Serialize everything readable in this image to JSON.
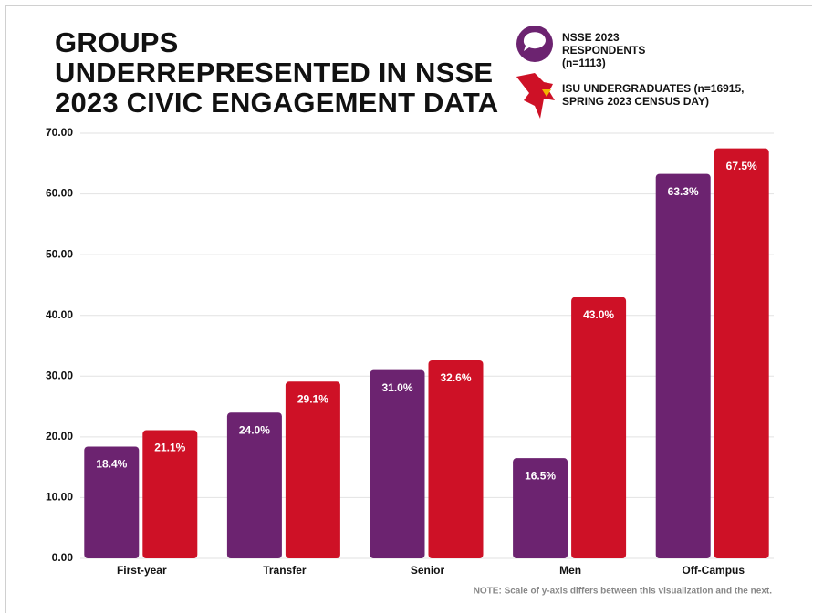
{
  "chart_data": {
    "type": "bar",
    "title": "GROUPS UNDERREPRESENTED IN NSSE 2023 CIVIC ENGAGEMENT DATA",
    "categories": [
      "First-year",
      "Transfer",
      "Senior",
      "Men",
      "Off-Campus"
    ],
    "series": [
      {
        "name": "NSSE 2023 RESPONDENTS (n=1113)",
        "color": "#6c2370",
        "values": [
          18.4,
          24.0,
          31.0,
          16.5,
          63.3
        ],
        "value_labels": [
          "18.4%",
          "24.0%",
          "31.0%",
          "16.5%",
          "63.3%"
        ]
      },
      {
        "name": "ISU UNDERGRADUATES (n=16915, SPRING 2023 CENSUS DAY)",
        "color": "#ce1126",
        "values": [
          21.1,
          29.1,
          32.6,
          43.0,
          67.5
        ],
        "value_labels": [
          "21.1%",
          "29.1%",
          "32.6%",
          "43.0%",
          "67.5%"
        ]
      }
    ],
    "ylim": [
      0,
      70
    ],
    "yticks": [
      {
        "value": 0,
        "label": "0.00"
      },
      {
        "value": 10,
        "label": "10.00"
      },
      {
        "value": 20,
        "label": "20.00"
      },
      {
        "value": 30,
        "label": "30.00"
      },
      {
        "value": 40,
        "label": "40.00"
      },
      {
        "value": 50,
        "label": "50.00"
      },
      {
        "value": 60,
        "label": "60.00"
      },
      {
        "value": 70,
        "label": "70.00"
      }
    ],
    "grid": true,
    "note": "NOTE: Scale of y-axis differs between this visualization and the next."
  }
}
